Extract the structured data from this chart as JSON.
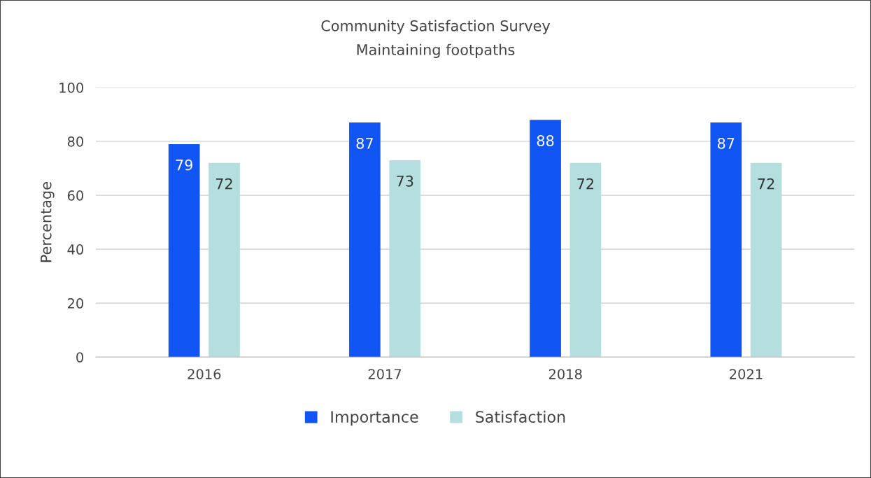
{
  "chart_data": {
    "type": "bar",
    "title": "Community Satisfaction Survey",
    "subtitle": "Maintaining footpaths",
    "ylabel": "Percentage",
    "categories": [
      "2016",
      "2017",
      "2018",
      "2021"
    ],
    "series": [
      {
        "name": "Importance",
        "color": "#1155f5",
        "values": [
          79,
          87,
          88,
          87
        ]
      },
      {
        "name": "Satisfaction",
        "color": "#b5dfdf",
        "values": [
          72,
          73,
          72,
          72
        ]
      }
    ],
    "ylim": [
      0,
      100
    ],
    "yticks": [
      0,
      20,
      40,
      60,
      80,
      100
    ],
    "grid": "y",
    "legend": "bottom",
    "data_labels": true
  }
}
